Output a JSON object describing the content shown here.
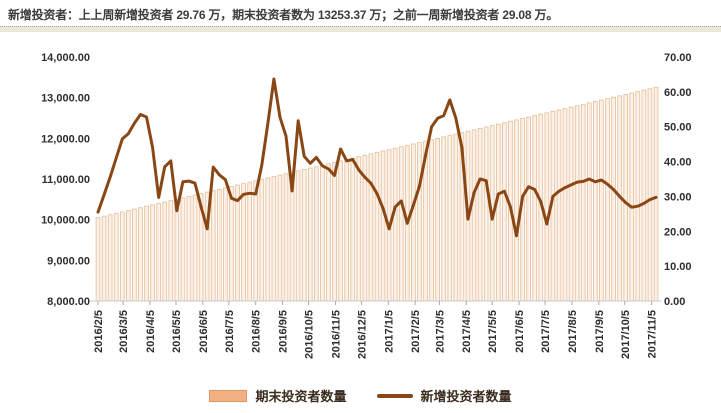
{
  "title": {
    "text": "新增投资者：上上周新增投资者 29.76 万，期末投资者数为 13253.37 万；之前一周新增投资者 29.08 万。"
  },
  "legend": {
    "bars_label": "期末投资者数量",
    "line_label": "新增投资者数量"
  },
  "colors": {
    "line": "#8A4716",
    "bar_fill": "#FAF1E8",
    "bar_stroke": "#EBC29E",
    "legend_bar_fill": "#F1B183",
    "legend_bar_stroke": "#DE9765",
    "axis_text": "#2e2e2e",
    "axis_line": "#c8c8c8",
    "tick_mark": "#aaaaaa",
    "title_text": "#3d3d3d"
  },
  "chart_data": {
    "type": "combo",
    "frequency": "weekly",
    "n_points": 93,
    "x_ticks": {
      "labels": [
        "2016/2/5",
        "2016/3/5",
        "2016/4/5",
        "2016/5/5",
        "2016/6/5",
        "2016/7/5",
        "2016/8/5",
        "2016/9/5",
        "2016/10/5",
        "2016/11/5",
        "2016/12/5",
        "2017/1/5",
        "2017/2/5",
        "2017/3/5",
        "2017/4/5",
        "2017/5/5",
        "2017/6/5",
        "2017/7/5",
        "2017/8/5",
        "2017/9/5",
        "2017/10/5",
        "2017/11/5"
      ],
      "pos_weeks": [
        0,
        4.14,
        8.57,
        12.86,
        17.29,
        21.57,
        26,
        30.43,
        34.71,
        39.14,
        43.43,
        47.86,
        52.29,
        56.29,
        60.71,
        65,
        69.43,
        73.71,
        78.14,
        82.57,
        86.86,
        91.29
      ]
    },
    "y_left": {
      "title": "期末投资者数量 (万)",
      "min": 8000,
      "max": 14000,
      "ticks": [
        "8,000.00",
        "9,000.00",
        "10,000.00",
        "11,000.00",
        "12,000.00",
        "13,000.00",
        "14,000.00"
      ]
    },
    "y_right": {
      "title": "新增投资者数量 (万)",
      "min": 0,
      "max": 70,
      "ticks": [
        "0.00",
        "10.00",
        "20.00",
        "30.00",
        "40.00",
        "50.00",
        "60.00",
        "70.00"
      ]
    },
    "series": [
      {
        "name": "期末投资者数量",
        "type": "bar",
        "axis": "left",
        "values": [
          10050,
          10085,
          10120,
          10154,
          10189,
          10224,
          10259,
          10294,
          10329,
          10363,
          10398,
          10433,
          10468,
          10503,
          10537,
          10572,
          10607,
          10642,
          10677,
          10712,
          10746,
          10781,
          10816,
          10851,
          10886,
          10921,
          10955,
          10990,
          11025,
          11060,
          11095,
          11129,
          11164,
          11199,
          11234,
          11269,
          11304,
          11338,
          11373,
          11408,
          11443,
          11478,
          11512,
          11547,
          11582,
          11617,
          11652,
          11687,
          11721,
          11756,
          11791,
          11826,
          11861,
          11896,
          11930,
          11965,
          12000,
          12035,
          12070,
          12104,
          12139,
          12174,
          12209,
          12244,
          12279,
          12313,
          12348,
          12383,
          12418,
          12453,
          12488,
          12522,
          12557,
          12592,
          12627,
          12662,
          12696,
          12731,
          12766,
          12801,
          12836,
          12871,
          12905,
          12940,
          12975,
          13010,
          13045,
          13080,
          13114,
          13149,
          13184,
          13219,
          13253.37
        ]
      },
      {
        "name": "新增投资者数量",
        "type": "line",
        "axis": "right",
        "values": [
          25.5,
          30.5,
          35.5,
          41.0,
          46.5,
          48.0,
          51.0,
          53.5,
          52.8,
          44.0,
          29.7,
          38.5,
          40.2,
          25.9,
          34.2,
          34.4,
          33.8,
          27.0,
          20.7,
          38.4,
          36.2,
          34.8,
          29.5,
          28.8,
          30.6,
          30.9,
          30.7,
          39.0,
          50.8,
          63.7,
          52.7,
          47.3,
          31.6,
          51.7,
          41.5,
          39.5,
          41.2,
          38.8,
          37.9,
          36.0,
          43.6,
          40.2,
          40.6,
          37.6,
          35.5,
          33.8,
          30.8,
          26.5,
          20.7,
          27.0,
          28.7,
          22.3,
          27.5,
          33.0,
          41.7,
          50.0,
          52.4,
          53.2,
          57.7,
          52.5,
          44.0,
          23.5,
          31.0,
          35.0,
          34.5,
          23.5,
          30.7,
          31.5,
          27.0,
          18.7,
          30.0,
          32.8,
          32.0,
          28.5,
          22.1,
          30.0,
          31.5,
          32.5,
          33.3,
          34.1,
          34.3,
          35.0,
          34.2,
          34.7,
          33.5,
          32.0,
          30.0,
          28.2,
          26.9,
          27.2,
          28.0,
          29.08,
          29.76
        ]
      }
    ]
  }
}
